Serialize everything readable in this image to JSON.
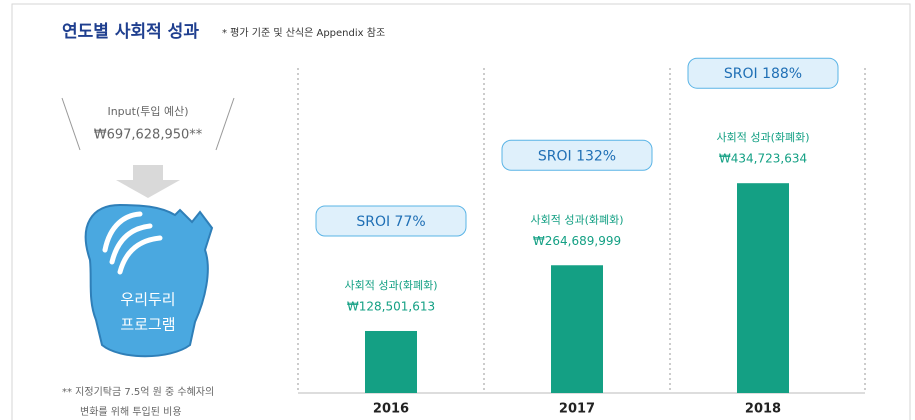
{
  "header": {
    "title": "연도별 사회적 성과",
    "note": "* 평가 기준 및 산식은 Appendix 참조"
  },
  "input": {
    "label": "Input(투입 예산)",
    "amount": "₩697,628,950**",
    "program": [
      "우리두리",
      "프로그램"
    ],
    "footnote": [
      "** 지정기탁금 7.5억 원 중 수혜자의",
      "변화를 위해 투입된 비용"
    ]
  },
  "chart_data": {
    "type": "bar",
    "categories": [
      "2016",
      "2017",
      "2018"
    ],
    "values": [
      128501613,
      264689999,
      434723634
    ],
    "value_labels": [
      "₩128,501,613",
      "₩264,689,999",
      "₩434,723,634"
    ],
    "value_caption": "사회적 성과(화폐화)",
    "sroi_labels": [
      "SROI 77%",
      "SROI 132%",
      "SROI 188%"
    ],
    "color": "#14a084",
    "ylim": [
      0,
      460000000
    ]
  }
}
